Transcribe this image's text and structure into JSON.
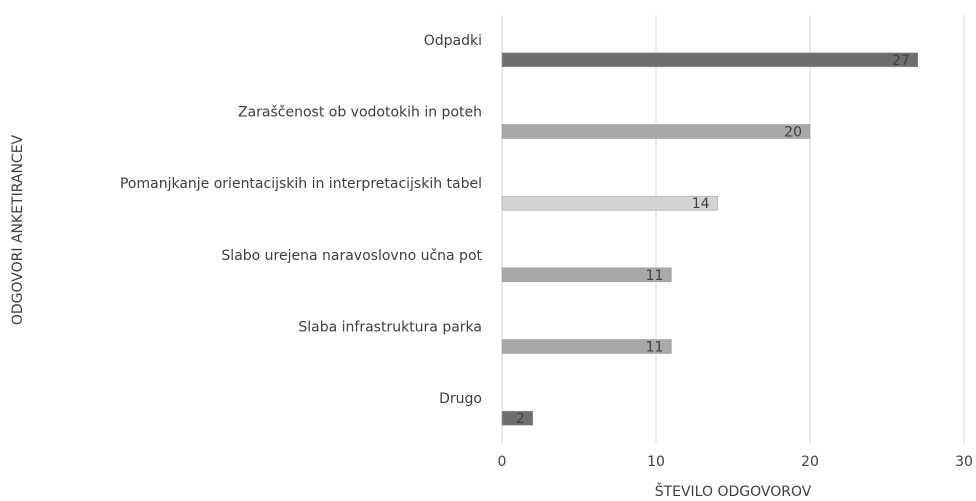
{
  "chart_data": {
    "type": "bar",
    "orientation": "horizontal",
    "xlabel": "ŠTEVILO ODGOVOROV",
    "ylabel": "ODGOVORI ANKETIRANCEV",
    "categories": [
      "Odpadki",
      "Zaraščenost ob vodotokih in poteh",
      "Pomanjkanje orientacijskih in interpretacijskih tabel",
      "Slabo urejena naravoslovno učna pot",
      "Slaba infrastruktura parka",
      "Drugo"
    ],
    "values": [
      27,
      20,
      14,
      11,
      11,
      2
    ],
    "colors": [
      "#6e6e6e",
      "#a8a8a8",
      "#d4d4d4",
      "#a8a8a8",
      "#a8a8a8",
      "#6e6e6e"
    ],
    "xlim": [
      0,
      30
    ],
    "xticks": [
      0,
      10,
      20,
      30
    ],
    "grid": true
  }
}
